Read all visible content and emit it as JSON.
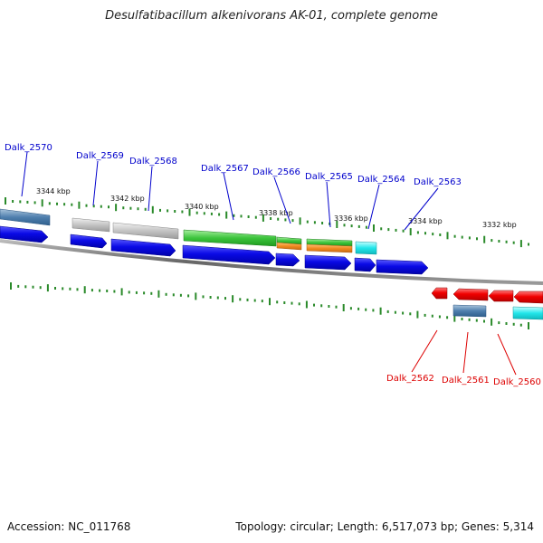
{
  "title": "Desulfatibacillum alkenivorans AK-01, complete genome",
  "footer": {
    "accession": "Accession: NC_011768",
    "summary": "Topology: circular; Length: 6,517,073 bp; Genes: 5,314"
  },
  "scale_ticks": [
    {
      "label": "3344 kbp"
    },
    {
      "label": "3342 kbp"
    },
    {
      "label": "3340 kbp"
    },
    {
      "label": "3338 kbp"
    },
    {
      "label": "3336 kbp"
    },
    {
      "label": "3334 kbp"
    },
    {
      "label": "3332 kbp"
    }
  ],
  "forward_genes": [
    {
      "label": "Dalk_2570"
    },
    {
      "label": "Dalk_2569"
    },
    {
      "label": "Dalk_2568"
    },
    {
      "label": "Dalk_2567"
    },
    {
      "label": "Dalk_2566"
    },
    {
      "label": "Dalk_2565"
    },
    {
      "label": "Dalk_2564"
    },
    {
      "label": "Dalk_2563"
    }
  ],
  "reverse_genes": [
    {
      "label": "Dalk_2562"
    },
    {
      "label": "Dalk_2561"
    },
    {
      "label": "Dalk_2560"
    }
  ],
  "colors": {
    "forward_label": "#0000cc",
    "reverse_label": "#dd0000",
    "cds_forward": "#0000dd",
    "cds_reverse": "#ee0000",
    "tick": "#2a8a2a",
    "backbone": "#777777"
  }
}
